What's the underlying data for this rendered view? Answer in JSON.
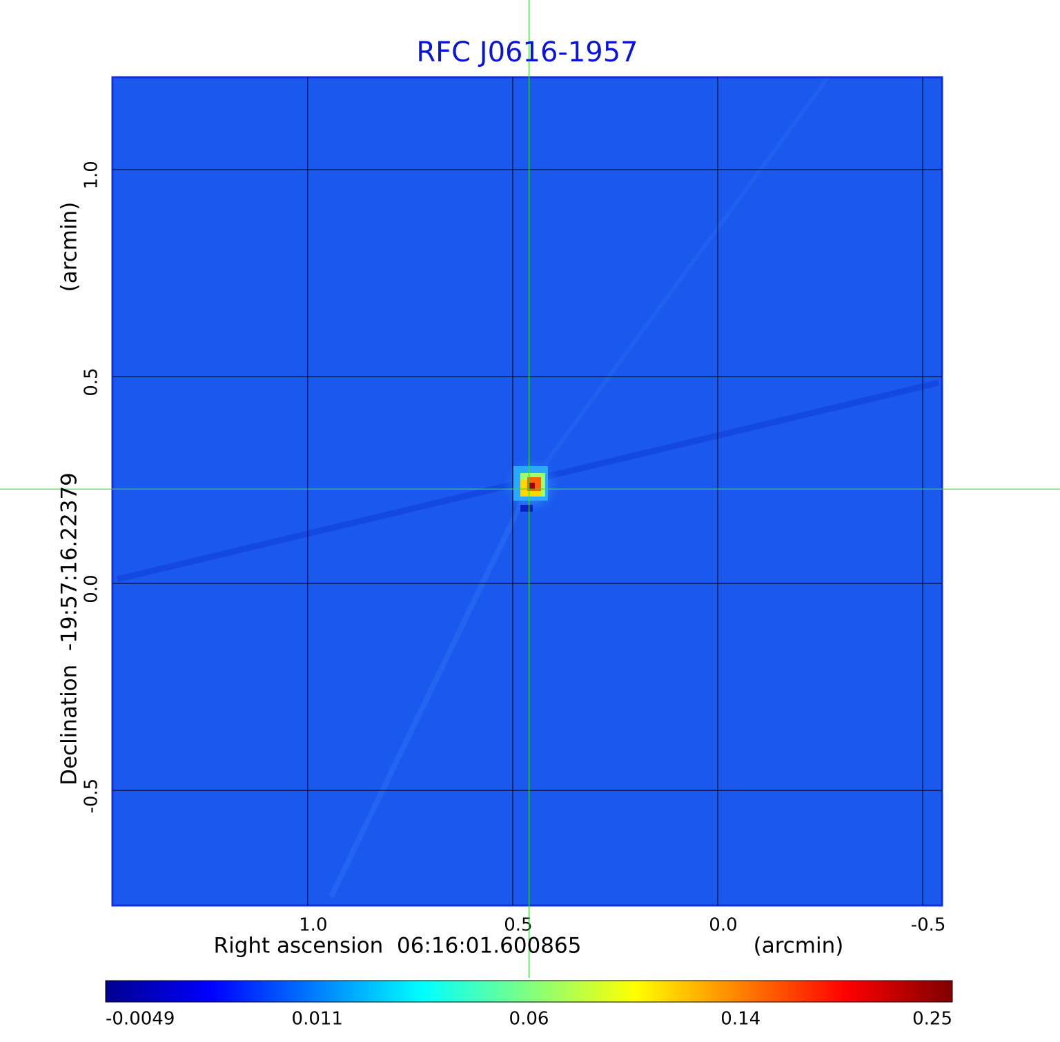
{
  "chart_data": {
    "type": "image",
    "title": "RFC J0616-1957",
    "xlabel": "Right ascension  06:16:01.600865",
    "xunit": "(arcmin)",
    "ylabel": "Declination  -19:57:16.22379",
    "yunit": "(arcmin)",
    "xlim": [
      1.476,
      -0.547
    ],
    "xticks": [
      {
        "value": 1,
        "label": "1.0"
      },
      0.5,
      {
        "value": 0,
        "label": "0.0"
      },
      -0.5
    ],
    "ylim": [
      -0.778,
      1.223
    ],
    "yticks": [
      {
        "value": 1,
        "label": "1.0"
      },
      0.5,
      {
        "value": 0,
        "label": "0.0"
      },
      -0.5
    ],
    "grid": true,
    "crosshair": {
      "x": 0.46,
      "y": 0.228,
      "color": "#33dd33"
    },
    "colorbar": {
      "ticks": [
        -0.0049,
        0.011,
        0.06,
        0.14,
        0.25
      ],
      "colors": [
        "#00008f",
        "#0000ff",
        "#0080ff",
        "#00ffff",
        "#80ff80",
        "#ffff00",
        "#ff8000",
        "#ff0000",
        "#800000"
      ]
    }
  }
}
